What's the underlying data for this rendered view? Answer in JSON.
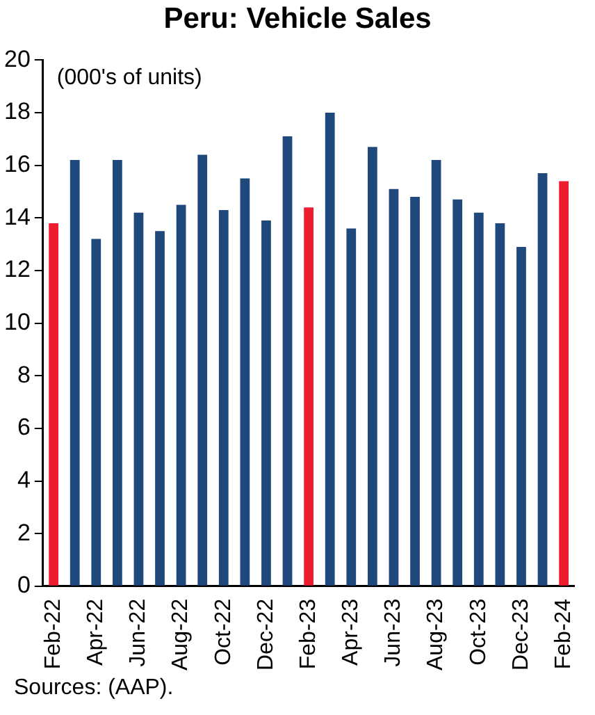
{
  "chart_data": {
    "type": "bar",
    "title": "Peru: Vehicle Sales",
    "ylabel": "(000's of units)",
    "categories": [
      "Feb-22",
      null,
      "Apr-22",
      null,
      "Jun-22",
      null,
      "Aug-22",
      null,
      "Oct-22",
      null,
      "Dec-22",
      null,
      "Feb-23",
      null,
      "Apr-23",
      null,
      "Jun-23",
      null,
      "Aug-23",
      null,
      "Oct-23",
      null,
      "Dec-23",
      null,
      "Feb-24"
    ],
    "values": [
      13.8,
      16.2,
      13.2,
      16.2,
      14.2,
      13.5,
      14.5,
      16.4,
      14.3,
      15.5,
      13.9,
      17.1,
      14.4,
      18.0,
      13.6,
      16.7,
      15.1,
      14.8,
      16.2,
      14.7,
      14.2,
      13.8,
      12.9,
      15.7,
      15.4
    ],
    "colors": [
      "#ed1c2e",
      "#1f497d",
      "#1f497d",
      "#1f497d",
      "#1f497d",
      "#1f497d",
      "#1f497d",
      "#1f497d",
      "#1f497d",
      "#1f497d",
      "#1f497d",
      "#1f497d",
      "#ed1c2e",
      "#1f497d",
      "#1f497d",
      "#1f497d",
      "#1f497d",
      "#1f497d",
      "#1f497d",
      "#1f497d",
      "#1f497d",
      "#1f497d",
      "#1f497d",
      "#1f497d",
      "#ed1c2e"
    ],
    "ylim": [
      0,
      20
    ],
    "yticks": [
      0,
      2,
      4,
      6,
      8,
      10,
      12,
      14,
      16,
      18,
      20
    ],
    "grid": false,
    "legend": false,
    "annotations": [
      "Sources: (AAP)."
    ]
  }
}
